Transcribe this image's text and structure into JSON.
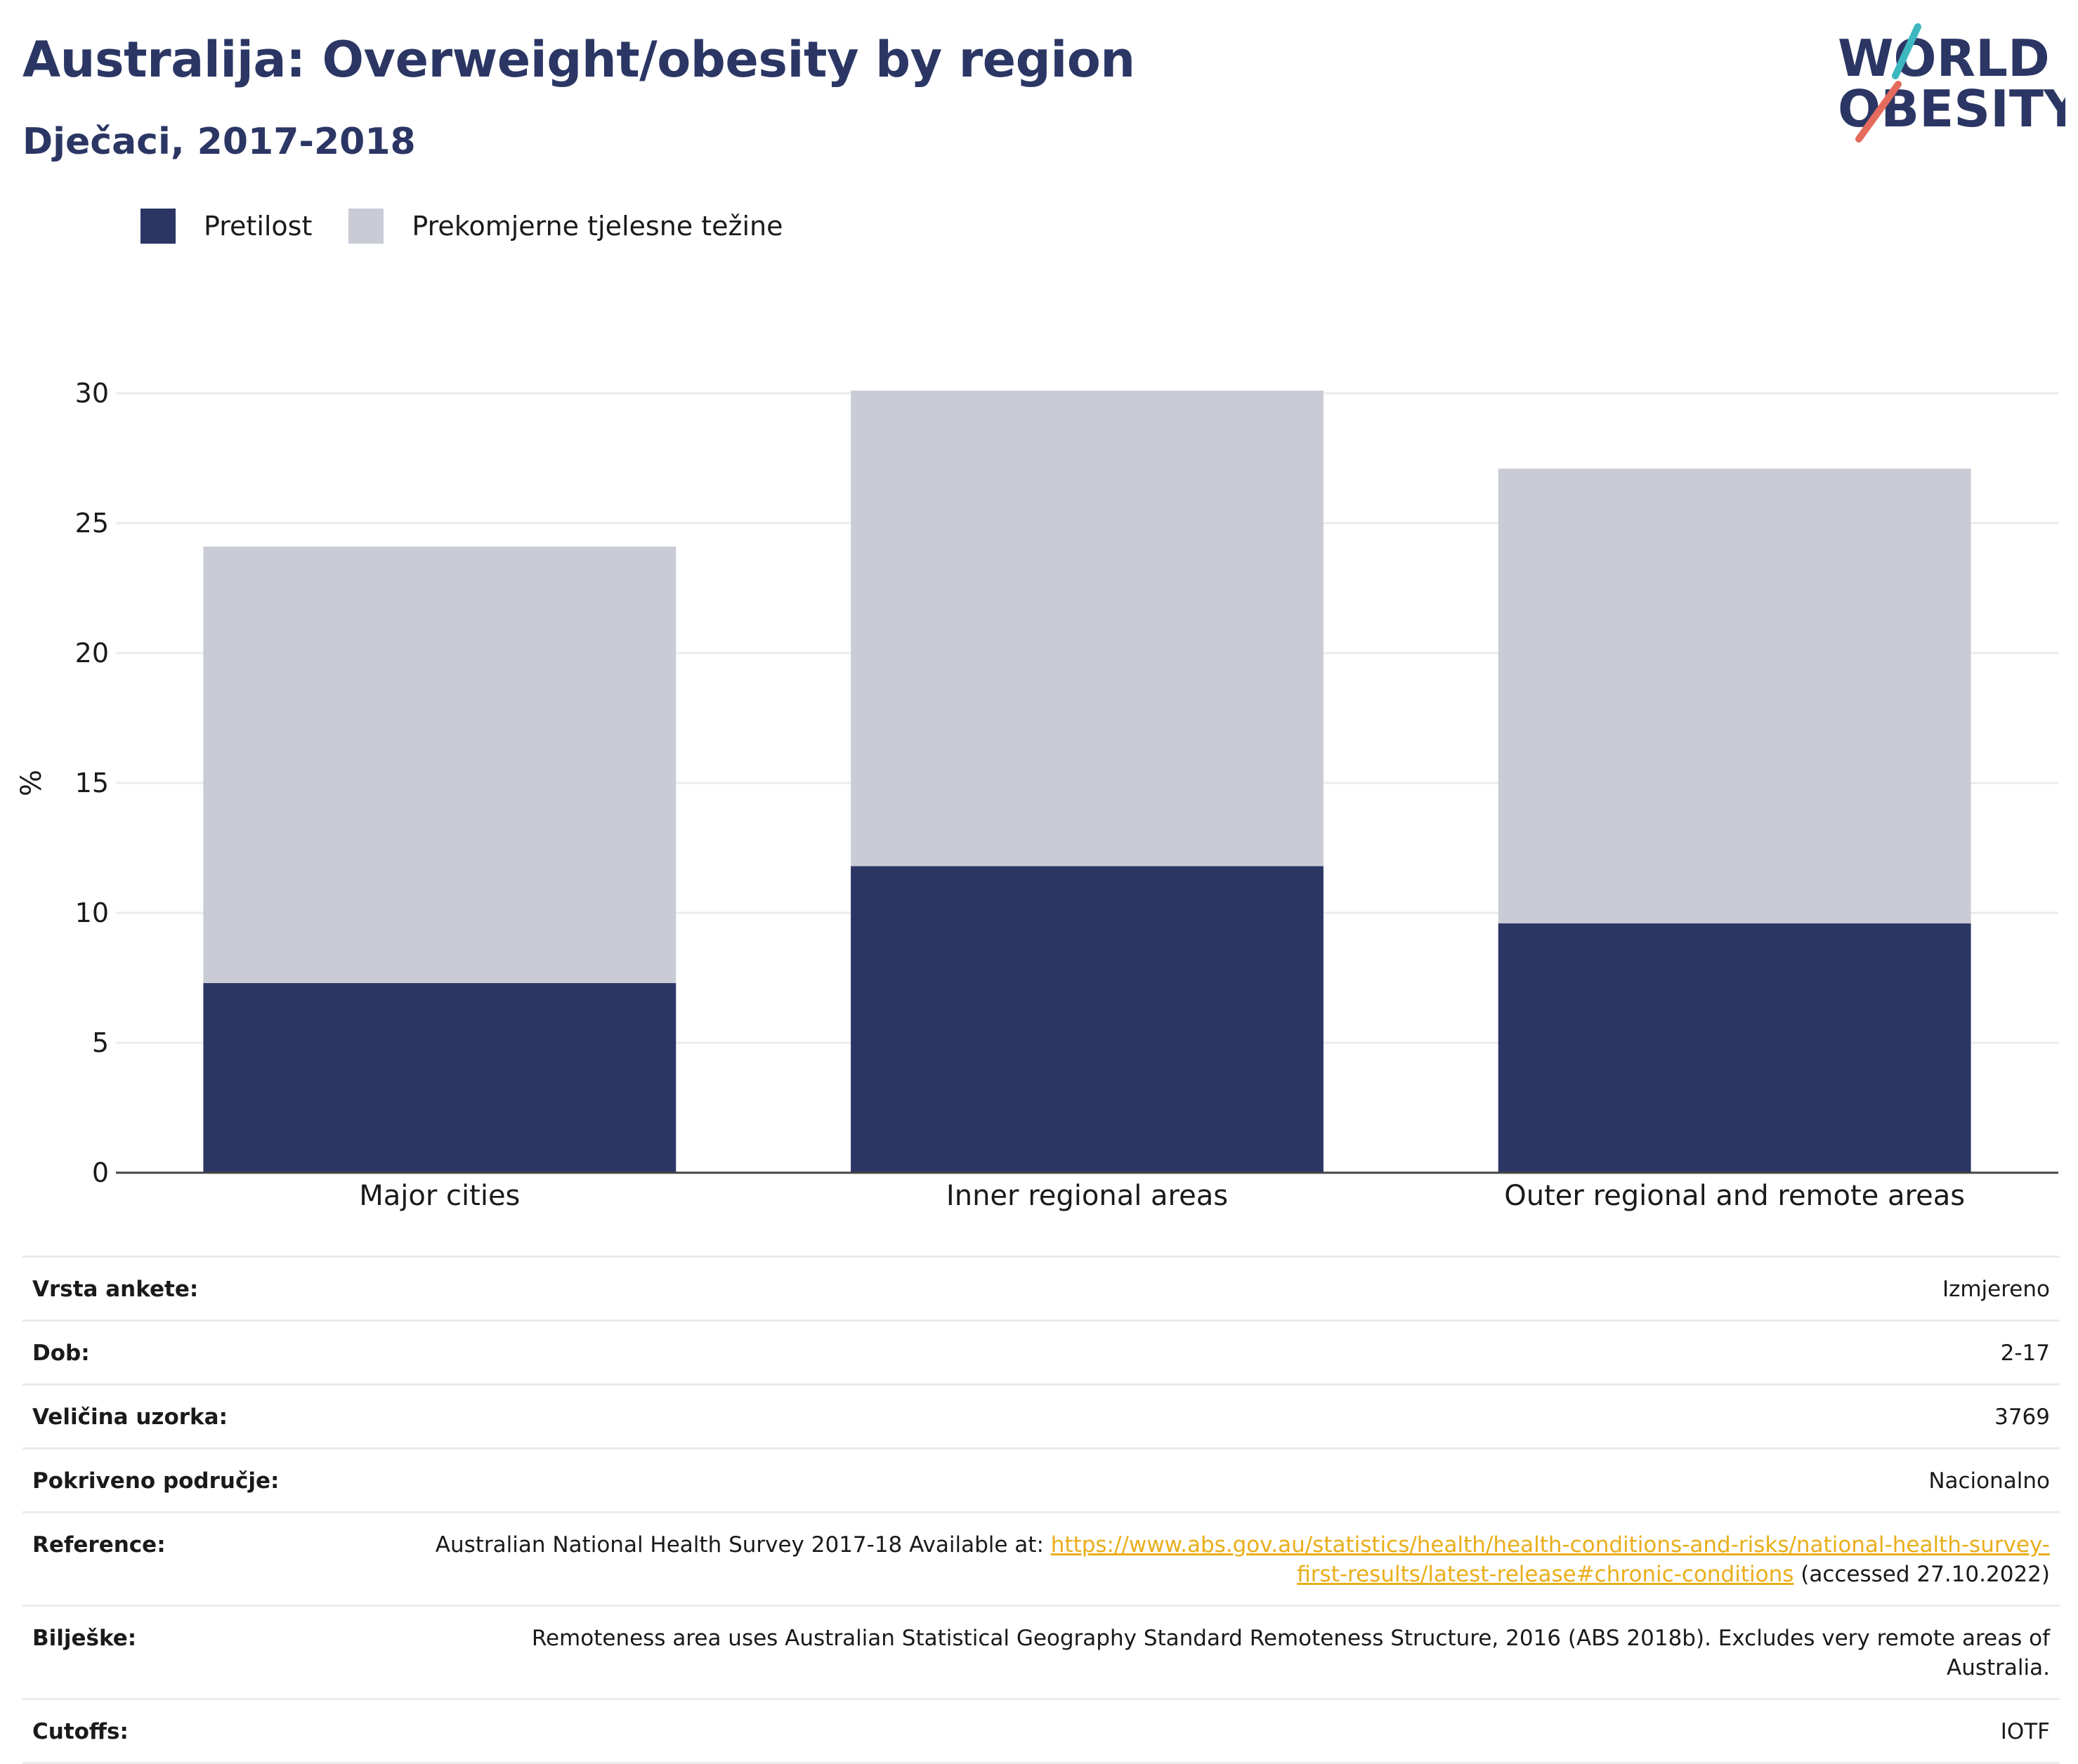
{
  "title": "Australija: Overweight/obesity by region",
  "subtitle": "Dječaci, 2017-2018",
  "logo": {
    "line1": "WORLD",
    "line2": "OBESITY",
    "colors": {
      "text": "#2b3664",
      "accent_teal": "#3db7c0",
      "accent_coral": "#e56b5d"
    }
  },
  "colors": {
    "obesity": "#2b3664",
    "overweight": "#c9cbd6",
    "gridline": "#ebebeb",
    "axis": "#444444",
    "link": "#e9ae1a"
  },
  "legend": [
    {
      "label": "Pretilost",
      "color": "#2b3664"
    },
    {
      "label": "Prekomjerne tjelesne težine",
      "color": "#c9cbd6"
    }
  ],
  "chart_data": {
    "type": "bar",
    "stacked": true,
    "categories": [
      "Major cities",
      "Inner regional areas",
      "Outer regional and remote areas"
    ],
    "series": [
      {
        "name": "Pretilost",
        "values": [
          7.3,
          11.8,
          9.6
        ]
      },
      {
        "name": "Prekomjerne tjelesne težine",
        "values": [
          16.8,
          18.3,
          17.5
        ]
      }
    ],
    "totals": [
      24.1,
      30.1,
      27.1
    ],
    "ylabel": "%",
    "xlabel": "",
    "ylim": [
      0,
      30
    ],
    "yticks": [
      0,
      5,
      10,
      15,
      20,
      25,
      30
    ],
    "grid": true,
    "legend_position": "top-left"
  },
  "info": [
    {
      "label": "Vrsta ankete:",
      "value": "Izmjereno"
    },
    {
      "label": "Dob:",
      "value": "2-17"
    },
    {
      "label": "Veličina uzorka:",
      "value": "3769"
    },
    {
      "label": "Pokriveno područje:",
      "value": "Nacionalno"
    },
    {
      "label": "Reference:",
      "value_prefix": "Australian National Health Survey 2017-18 Available at: ",
      "link": "https://www.abs.gov.au/statistics/health/health-conditions-and-risks/national-health-survey-first-results/latest-release#chronic-conditions",
      "value_suffix": " (accessed 27.10.2022)"
    },
    {
      "label": "Bilješke:",
      "value": "Remoteness area uses Australian Statistical Geography Standard Remoteness Structure, 2016 (ABS 2018b). Excludes very remote areas of Australia."
    },
    {
      "label": "Cutoffs:",
      "value": "IOTF"
    }
  ]
}
